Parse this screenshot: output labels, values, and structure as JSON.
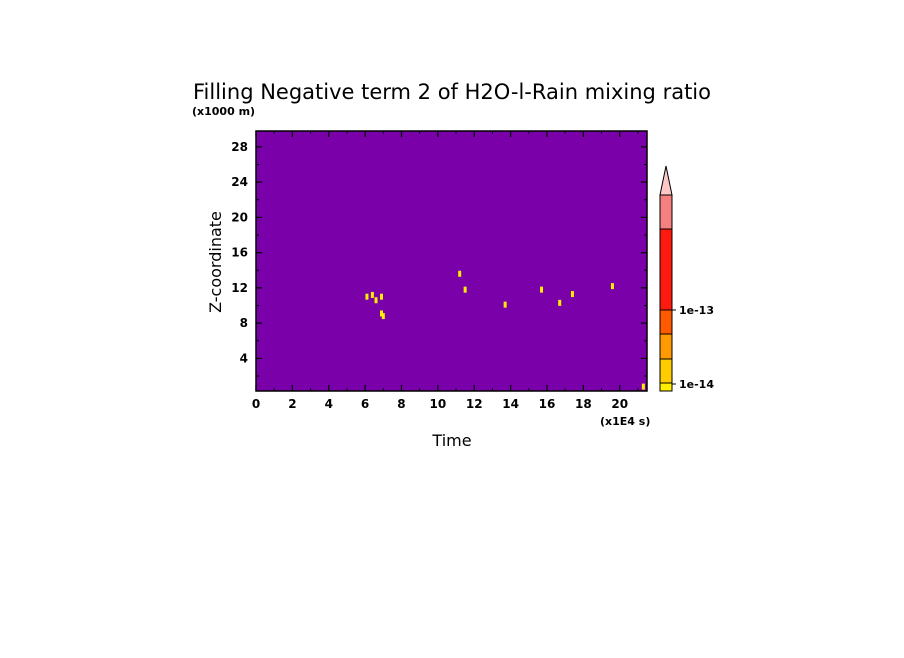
{
  "chart_data": {
    "type": "heatmap",
    "title": "Filling Negative term 2 of H2O-l-Rain mixing ratio",
    "xlabel": "Time",
    "ylabel": "Z-coordinate",
    "x_unit": "(x1E4 s)",
    "y_unit": "(x1000 m)",
    "xlim": [
      0,
      21.5
    ],
    "ylim": [
      0.3,
      29.8
    ],
    "x_ticks": [
      0,
      2,
      4,
      6,
      8,
      10,
      12,
      14,
      16,
      18,
      20
    ],
    "y_ticks": [
      4,
      8,
      12,
      16,
      20,
      24,
      28
    ],
    "x_tick_labels": [
      "0",
      "2",
      "4",
      "6",
      "8",
      "10",
      "12",
      "14",
      "16",
      "18",
      "20"
    ],
    "y_tick_labels": [
      "4",
      "8",
      "12",
      "16",
      "20",
      "24",
      "28"
    ],
    "background_color": "#7a00aa",
    "colorbar": {
      "colors": [
        "#ffee00",
        "#ffcc00",
        "#ff9900",
        "#ff5a00",
        "#ff1a10",
        "#f58080",
        "#ffc8c8"
      ],
      "labels": [
        "1e-14",
        "1e-13"
      ],
      "extend": "max"
    },
    "points": [
      {
        "x": 6.1,
        "y": 11.0
      },
      {
        "x": 6.4,
        "y": 11.2
      },
      {
        "x": 6.6,
        "y": 10.6
      },
      {
        "x": 6.9,
        "y": 11.0
      },
      {
        "x": 6.9,
        "y": 9.1
      },
      {
        "x": 7.0,
        "y": 8.8
      },
      {
        "x": 11.5,
        "y": 11.8
      },
      {
        "x": 11.2,
        "y": 13.6
      },
      {
        "x": 13.7,
        "y": 10.1
      },
      {
        "x": 15.7,
        "y": 11.8
      },
      {
        "x": 16.7,
        "y": 10.3
      },
      {
        "x": 17.4,
        "y": 11.3
      },
      {
        "x": 19.6,
        "y": 12.2
      },
      {
        "x": 21.3,
        "y": 0.8
      }
    ]
  }
}
